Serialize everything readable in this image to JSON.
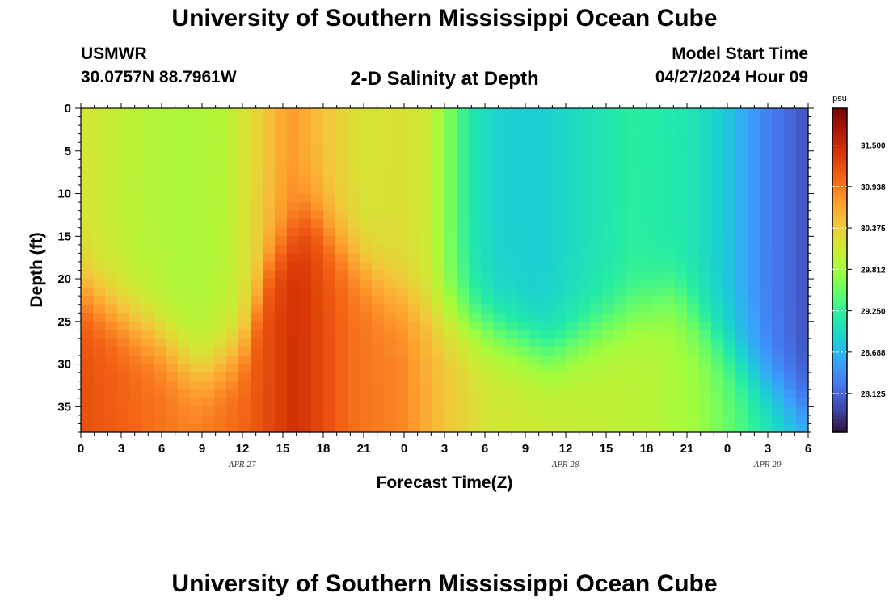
{
  "header": {
    "title": "University of Southern Mississippi Ocean Cube",
    "station": "USMWR",
    "coordinates": "30.0757N  88.7961W",
    "subtitle": "2-D Salinity at Depth",
    "model_start_label": "Model Start Time",
    "model_start_value": "04/27/2024 Hour 09"
  },
  "footer": {
    "title": "University of Southern Mississippi Ocean Cube"
  },
  "chart_data": {
    "type": "heatmap",
    "title": "2-D Salinity at Depth",
    "xlabel": "Forecast Time(Z)",
    "ylabel": "Depth (ft)",
    "x_range_hours": [
      0,
      54
    ],
    "x_tick_hours": [
      0,
      3,
      6,
      9,
      12,
      15,
      18,
      21,
      24,
      27,
      30,
      33,
      36,
      39,
      42,
      45,
      48,
      51,
      54
    ],
    "x_tick_labels": [
      "0",
      "3",
      "6",
      "9",
      "12",
      "15",
      "18",
      "21",
      "0",
      "3",
      "6",
      "9",
      "12",
      "15",
      "18",
      "21",
      "0",
      "3",
      "6"
    ],
    "date_labels": [
      {
        "text": "APR 27",
        "hour": 12
      },
      {
        "text": "APR 28",
        "hour": 36
      },
      {
        "text": "APR 29",
        "hour": 51
      }
    ],
    "y_range_ft": [
      0,
      38
    ],
    "y_ticks": [
      0,
      5,
      10,
      15,
      20,
      25,
      30,
      35
    ],
    "y_tick_labels": [
      "0",
      "5",
      "10",
      "15",
      "20",
      "25",
      "30",
      "35"
    ],
    "colorbar": {
      "unit": "psu",
      "range": [
        27.6,
        32.0
      ],
      "ticks": [
        28.125,
        28.688,
        29.25,
        29.812,
        30.375,
        30.938,
        31.5
      ],
      "tick_labels": [
        "28.125",
        "28.688",
        "29.250",
        "29.812",
        "30.375",
        "30.938",
        "31.500"
      ],
      "colors": [
        "#30123b",
        "#4145ab",
        "#4675ed",
        "#39a2fc",
        "#1bcfd4",
        "#24eca6",
        "#61fc6c",
        "#a4fc3b",
        "#d1e834",
        "#f3c63a",
        "#fe9b2d",
        "#f36315",
        "#d93806",
        "#b11901",
        "#7a0403"
      ]
    },
    "surface_salinity_psu": [
      {
        "hour": 0,
        "value": 30.15
      },
      {
        "hour": 4,
        "value": 29.95
      },
      {
        "hour": 8,
        "value": 29.85
      },
      {
        "hour": 11,
        "value": 29.95
      },
      {
        "hour": 13.5,
        "value": 30.4
      },
      {
        "hour": 15.5,
        "value": 30.75
      },
      {
        "hour": 18,
        "value": 30.45
      },
      {
        "hour": 21,
        "value": 30.15
      },
      {
        "hour": 24,
        "value": 30.2
      },
      {
        "hour": 26,
        "value": 30.05
      },
      {
        "hour": 27.5,
        "value": 29.55
      },
      {
        "hour": 29,
        "value": 29.1
      },
      {
        "hour": 31,
        "value": 28.9
      },
      {
        "hour": 34,
        "value": 28.85
      },
      {
        "hour": 37,
        "value": 29.0
      },
      {
        "hour": 41,
        "value": 29.2
      },
      {
        "hour": 45,
        "value": 29.1
      },
      {
        "hour": 48,
        "value": 28.8
      },
      {
        "hour": 51,
        "value": 28.3
      },
      {
        "hour": 54,
        "value": 28.0
      }
    ],
    "bottom_salinity_psu": [
      {
        "hour": 0,
        "value": 31.2
      },
      {
        "hour": 8,
        "value": 30.9
      },
      {
        "hour": 12,
        "value": 31.05
      },
      {
        "hour": 16,
        "value": 31.45
      },
      {
        "hour": 20,
        "value": 31.0
      },
      {
        "hour": 24,
        "value": 30.85
      },
      {
        "hour": 27,
        "value": 30.45
      },
      {
        "hour": 30,
        "value": 30.15
      },
      {
        "hour": 36,
        "value": 30.05
      },
      {
        "hour": 42,
        "value": 29.95
      },
      {
        "hour": 46,
        "value": 29.75
      },
      {
        "hour": 49,
        "value": 29.4
      },
      {
        "hour": 52,
        "value": 29.0
      },
      {
        "hour": 54,
        "value": 28.8
      }
    ],
    "halocline_depth_ft": [
      {
        "hour": 0,
        "value": 21
      },
      {
        "hour": 6,
        "value": 27
      },
      {
        "hour": 9,
        "value": 31
      },
      {
        "hour": 12,
        "value": 28
      },
      {
        "hour": 14,
        "value": 18
      },
      {
        "hour": 17,
        "value": 12
      },
      {
        "hour": 22,
        "value": 20
      },
      {
        "hour": 26,
        "value": 24
      },
      {
        "hour": 30,
        "value": 26
      },
      {
        "hour": 35,
        "value": 29
      },
      {
        "hour": 40,
        "value": 25
      },
      {
        "hour": 44,
        "value": 22
      },
      {
        "hour": 49,
        "value": 30
      },
      {
        "hour": 54,
        "value": 36
      }
    ]
  }
}
